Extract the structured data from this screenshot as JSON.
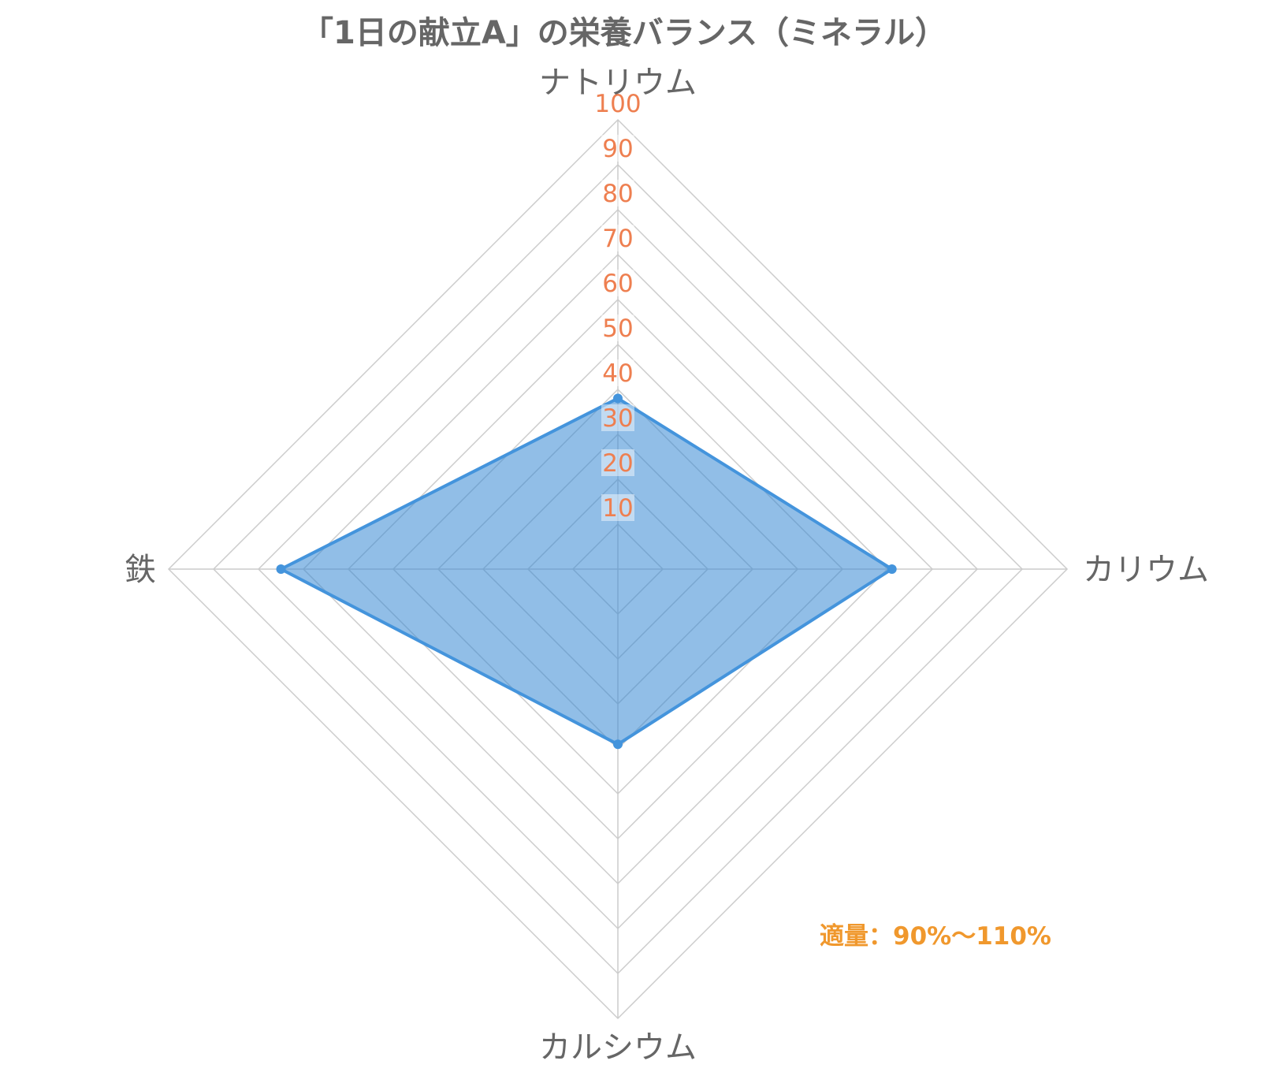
{
  "chart_data": {
    "type": "radar",
    "title": "「1日の献立A」の栄養バランス（ミネラル）",
    "axes": [
      "ナトリウム",
      "カリウム",
      "カルシウム",
      "鉄"
    ],
    "series": [
      {
        "values": [
          38,
          61,
          39,
          75
        ]
      }
    ],
    "r_range": [
      0,
      100
    ],
    "r_ticks": [
      10,
      20,
      30,
      40,
      50,
      60,
      70,
      80,
      90,
      100
    ],
    "grid": true,
    "annotation": "適量：90%〜110%",
    "colors": {
      "series_fill": "rgba(54, 137, 211, 0.55)",
      "series_stroke": "#4494dc",
      "tick_label": "#ee7f50",
      "grid": "#cccccc",
      "axis_label": "#666666",
      "title": "#666666",
      "annotation": "#f0982d"
    }
  }
}
